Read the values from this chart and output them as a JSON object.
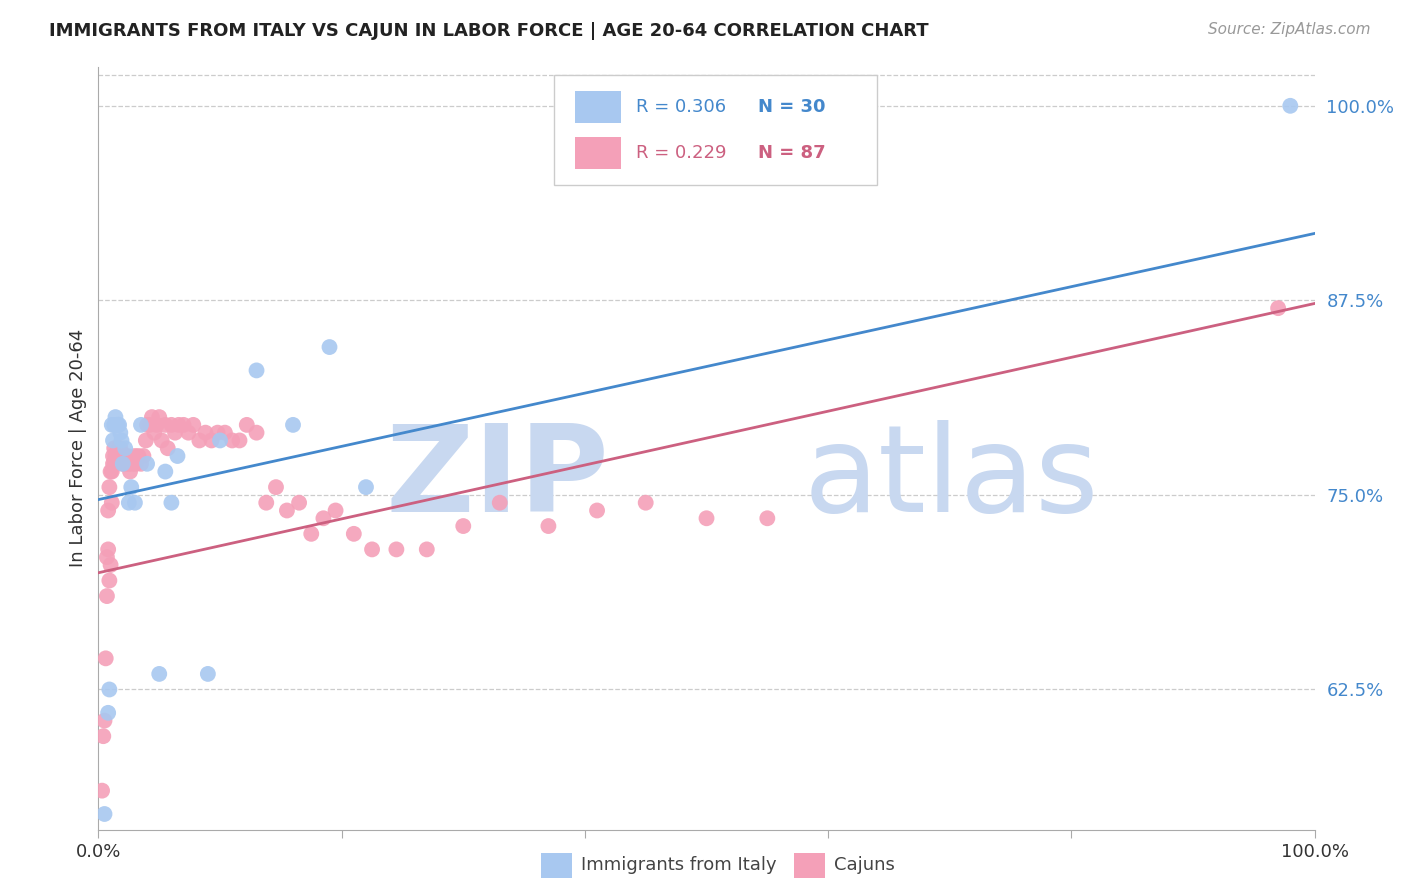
{
  "title": "IMMIGRANTS FROM ITALY VS CAJUN IN LABOR FORCE | AGE 20-64 CORRELATION CHART",
  "source": "Source: ZipAtlas.com",
  "ylabel": "In Labor Force | Age 20-64",
  "xlim": [
    0.0,
    1.0
  ],
  "ylim": [
    0.535,
    1.025
  ],
  "ytick_positions": [
    0.625,
    0.75,
    0.875,
    1.0
  ],
  "ytick_labels": [
    "62.5%",
    "75.0%",
    "87.5%",
    "100.0%"
  ],
  "blue_R": 0.306,
  "blue_N": 30,
  "pink_R": 0.229,
  "pink_N": 87,
  "blue_color": "#A8C8F0",
  "pink_color": "#F4A0B8",
  "blue_line_color": "#4488CC",
  "pink_line_color": "#CC6080",
  "grid_color": "#CCCCCC",
  "background_color": "#FFFFFF",
  "watermark_zip": "ZIP",
  "watermark_atlas": "atlas",
  "watermark_color": "#C8D8F0",
  "legend_label_blue": "Immigrants from Italy",
  "legend_label_pink": "Cajuns",
  "blue_line_y0": 0.747,
  "blue_line_y1": 0.918,
  "pink_line_y0": 0.7,
  "pink_line_y1": 0.873,
  "blue_points_x": [
    0.005,
    0.008,
    0.009,
    0.011,
    0.012,
    0.013,
    0.014,
    0.015,
    0.016,
    0.017,
    0.018,
    0.019,
    0.02,
    0.022,
    0.025,
    0.027,
    0.03,
    0.035,
    0.04,
    0.05,
    0.055,
    0.06,
    0.065,
    0.09,
    0.1,
    0.13,
    0.16,
    0.19,
    0.22,
    0.98
  ],
  "blue_points_y": [
    0.545,
    0.61,
    0.625,
    0.795,
    0.785,
    0.795,
    0.8,
    0.795,
    0.795,
    0.795,
    0.79,
    0.785,
    0.77,
    0.78,
    0.745,
    0.755,
    0.745,
    0.795,
    0.77,
    0.635,
    0.765,
    0.745,
    0.775,
    0.635,
    0.785,
    0.83,
    0.795,
    0.845,
    0.755,
    1.0
  ],
  "pink_points_x": [
    0.003,
    0.004,
    0.005,
    0.006,
    0.007,
    0.007,
    0.008,
    0.008,
    0.009,
    0.009,
    0.01,
    0.01,
    0.011,
    0.011,
    0.012,
    0.012,
    0.013,
    0.013,
    0.014,
    0.014,
    0.015,
    0.015,
    0.016,
    0.016,
    0.017,
    0.017,
    0.018,
    0.018,
    0.019,
    0.019,
    0.02,
    0.021,
    0.022,
    0.023,
    0.024,
    0.025,
    0.026,
    0.028,
    0.03,
    0.031,
    0.033,
    0.035,
    0.037,
    0.039,
    0.04,
    0.042,
    0.044,
    0.046,
    0.048,
    0.05,
    0.052,
    0.055,
    0.057,
    0.06,
    0.063,
    0.066,
    0.07,
    0.074,
    0.078,
    0.083,
    0.088,
    0.093,
    0.098,
    0.104,
    0.11,
    0.116,
    0.122,
    0.13,
    0.138,
    0.146,
    0.155,
    0.165,
    0.175,
    0.185,
    0.195,
    0.21,
    0.225,
    0.245,
    0.27,
    0.3,
    0.33,
    0.37,
    0.41,
    0.45,
    0.5,
    0.55,
    0.97
  ],
  "pink_points_y": [
    0.56,
    0.595,
    0.605,
    0.645,
    0.685,
    0.71,
    0.715,
    0.74,
    0.695,
    0.755,
    0.705,
    0.765,
    0.745,
    0.765,
    0.77,
    0.775,
    0.77,
    0.78,
    0.775,
    0.775,
    0.77,
    0.775,
    0.78,
    0.775,
    0.78,
    0.78,
    0.775,
    0.78,
    0.775,
    0.775,
    0.77,
    0.775,
    0.775,
    0.77,
    0.775,
    0.77,
    0.765,
    0.77,
    0.775,
    0.77,
    0.775,
    0.77,
    0.775,
    0.785,
    0.795,
    0.795,
    0.8,
    0.79,
    0.795,
    0.8,
    0.785,
    0.795,
    0.78,
    0.795,
    0.79,
    0.795,
    0.795,
    0.79,
    0.795,
    0.785,
    0.79,
    0.785,
    0.79,
    0.79,
    0.785,
    0.785,
    0.795,
    0.79,
    0.745,
    0.755,
    0.74,
    0.745,
    0.725,
    0.735,
    0.74,
    0.725,
    0.715,
    0.715,
    0.715,
    0.73,
    0.745,
    0.73,
    0.74,
    0.745,
    0.735,
    0.735,
    0.87
  ]
}
